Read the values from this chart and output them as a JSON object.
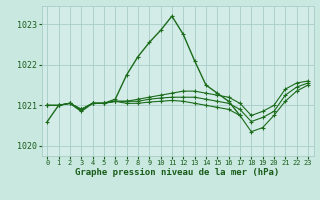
{
  "title": "Graphe pression niveau de la mer (hPa)",
  "bg_color": "#c8e8e0",
  "plot_bg_color": "#d4ece8",
  "line_color": "#1a6b1a",
  "grid_color": "#a8ccc8",
  "text_color": "#1a5c1a",
  "xlim": [
    -0.5,
    23.5
  ],
  "ylim": [
    1019.75,
    1023.45
  ],
  "yticks": [
    1020,
    1021,
    1022,
    1023
  ],
  "xticks": [
    0,
    1,
    2,
    3,
    4,
    5,
    6,
    7,
    8,
    9,
    10,
    11,
    12,
    13,
    14,
    15,
    16,
    17,
    18,
    19,
    20,
    21,
    22,
    23
  ],
  "line1_x": [
    0,
    1,
    2,
    3,
    4,
    5,
    6,
    7,
    8,
    9,
    10,
    11,
    12,
    13,
    14,
    15,
    16,
    17
  ],
  "line1_y": [
    1020.6,
    1021.0,
    1021.05,
    1020.85,
    1021.05,
    1021.05,
    1021.15,
    1021.75,
    1022.2,
    1022.55,
    1022.85,
    1023.2,
    1022.75,
    1022.1,
    1021.5,
    1021.3,
    1021.1,
    1020.75
  ],
  "line2_x": [
    0,
    1,
    2,
    3,
    4,
    5,
    6,
    7,
    8,
    9,
    10,
    11,
    12,
    13,
    14,
    15,
    16,
    17,
    18,
    19,
    20,
    21,
    22,
    23
  ],
  "line2_y": [
    1021.0,
    1021.0,
    1021.05,
    1020.9,
    1021.05,
    1021.05,
    1021.1,
    1021.1,
    1021.15,
    1021.2,
    1021.25,
    1021.3,
    1021.35,
    1021.35,
    1021.3,
    1021.25,
    1021.2,
    1021.05,
    1020.75,
    1020.85,
    1021.0,
    1021.4,
    1021.55,
    1021.6
  ],
  "line3_x": [
    0,
    1,
    2,
    3,
    4,
    5,
    6,
    7,
    8,
    9,
    10,
    11,
    12,
    13,
    14,
    15,
    16,
    17,
    18,
    19,
    20,
    21,
    22,
    23
  ],
  "line3_y": [
    1021.0,
    1021.0,
    1021.05,
    1020.9,
    1021.05,
    1021.05,
    1021.1,
    1021.1,
    1021.1,
    1021.15,
    1021.18,
    1021.2,
    1021.2,
    1021.2,
    1021.15,
    1021.1,
    1021.05,
    1020.9,
    1020.6,
    1020.7,
    1020.85,
    1021.25,
    1021.45,
    1021.55
  ],
  "line4_x": [
    0,
    1,
    2,
    3,
    4,
    5,
    6,
    7,
    8,
    9,
    10,
    11,
    12,
    13,
    14,
    15,
    16,
    17,
    18,
    19,
    20,
    21,
    22,
    23
  ],
  "line4_y": [
    1021.0,
    1021.0,
    1021.05,
    1020.9,
    1021.05,
    1021.05,
    1021.1,
    1021.05,
    1021.05,
    1021.08,
    1021.1,
    1021.12,
    1021.1,
    1021.05,
    1021.0,
    1020.95,
    1020.9,
    1020.75,
    1020.35,
    1020.45,
    1020.75,
    1021.1,
    1021.35,
    1021.5
  ]
}
